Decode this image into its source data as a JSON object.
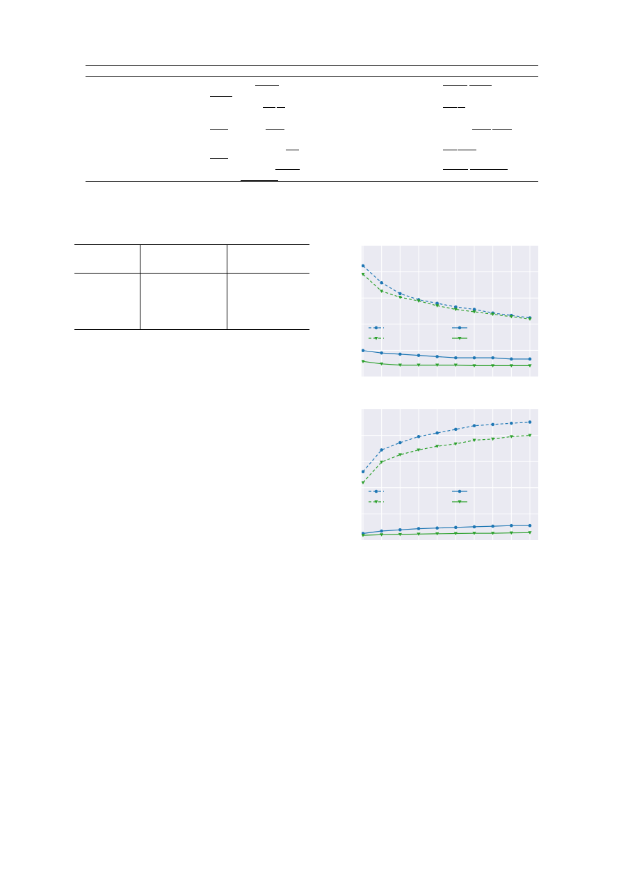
{
  "table1": {
    "underline_marks": [
      "u1",
      "u2",
      "u3",
      "u4",
      "u5",
      "u6",
      "u7",
      "u8",
      "u9",
      "u10",
      "u11",
      "u12",
      "u13",
      "u14",
      "u15",
      "u16",
      "u17",
      "u18",
      "u19",
      "u20",
      "u21",
      "u22"
    ]
  },
  "table2": {},
  "colors": {
    "background": "#eaeaf2",
    "grid": "#ffffff",
    "series_blue": "#1f77b4",
    "series_green": "#2ca02c"
  },
  "chart_data": [
    {
      "type": "line",
      "legend_position": "middle",
      "grid": true,
      "x": [
        0,
        1,
        2,
        3,
        4,
        5,
        6,
        7,
        8,
        9
      ],
      "ylim": [
        0,
        1
      ],
      "series": [
        {
          "color": "#1f77b4",
          "style": "dashed",
          "marker": "circle",
          "values": [
            0.88,
            0.74,
            0.65,
            0.6,
            0.57,
            0.54,
            0.52,
            0.49,
            0.47,
            0.45
          ]
        },
        {
          "color": "#2ca02c",
          "style": "dashed",
          "marker": "triangle-down",
          "values": [
            0.81,
            0.67,
            0.62,
            0.59,
            0.55,
            0.52,
            0.5,
            0.48,
            0.46,
            0.44
          ]
        },
        {
          "color": "#1f77b4",
          "style": "solid",
          "marker": "circle",
          "values": [
            0.18,
            0.16,
            0.15,
            0.14,
            0.13,
            0.12,
            0.12,
            0.12,
            0.11,
            0.11
          ]
        },
        {
          "color": "#2ca02c",
          "style": "solid",
          "marker": "triangle-down",
          "values": [
            0.09,
            0.07,
            0.06,
            0.06,
            0.06,
            0.06,
            0.055,
            0.055,
            0.055,
            0.055
          ]
        }
      ]
    },
    {
      "type": "line",
      "legend_position": "middle",
      "grid": true,
      "x": [
        0,
        1,
        2,
        3,
        4,
        5,
        6,
        7,
        8,
        9
      ],
      "ylim": [
        0,
        1
      ],
      "series": [
        {
          "color": "#1f77b4",
          "style": "dashed",
          "marker": "circle",
          "values": [
            0.53,
            0.71,
            0.77,
            0.82,
            0.85,
            0.88,
            0.91,
            0.92,
            0.93,
            0.94
          ]
        },
        {
          "color": "#2ca02c",
          "style": "dashed",
          "marker": "triangle-down",
          "values": [
            0.44,
            0.61,
            0.67,
            0.71,
            0.74,
            0.76,
            0.79,
            0.8,
            0.82,
            0.83
          ]
        },
        {
          "color": "#1f77b4",
          "style": "solid",
          "marker": "circle",
          "values": [
            0.02,
            0.04,
            0.05,
            0.06,
            0.065,
            0.07,
            0.075,
            0.08,
            0.085,
            0.085
          ]
        },
        {
          "color": "#2ca02c",
          "style": "solid",
          "marker": "triangle-down",
          "values": [
            0.005,
            0.01,
            0.012,
            0.015,
            0.018,
            0.02,
            0.022,
            0.022,
            0.025,
            0.027
          ]
        }
      ]
    }
  ]
}
